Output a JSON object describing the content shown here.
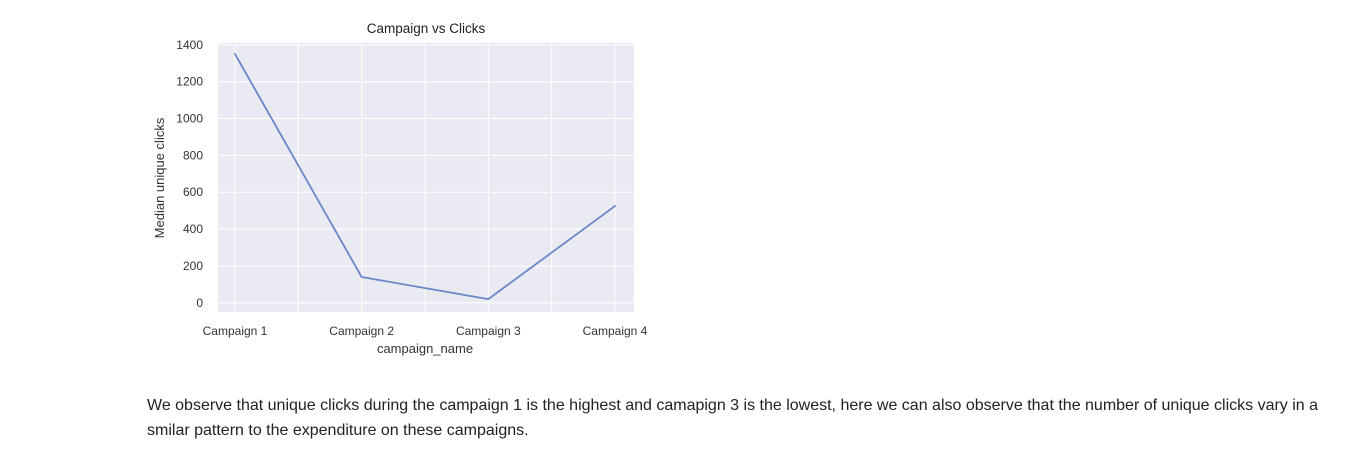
{
  "chart_data": {
    "type": "line",
    "title": "Campaign vs Clicks",
    "xlabel": "campaign_name",
    "ylabel": "Median unique clicks",
    "categories": [
      "Campaign 1",
      "Campaign 2",
      "Campaign 3",
      "Campaign 4"
    ],
    "series": [
      {
        "values": [
          1350,
          140,
          20,
          525
        ],
        "color": "#6a87c8"
      }
    ],
    "ylim": [
      -50,
      1410
    ],
    "yticks": [
      0,
      200,
      400,
      600,
      800,
      1000,
      1200,
      1400
    ],
    "grid": true,
    "background": "#eaeaf2",
    "grid_color": "#ffffff"
  },
  "text": {
    "description": "We observe that unique clicks during the campaign 1 is the highest and camapign 3 is the lowest, here we can also observe that the number of unique clicks vary in a smilar pattern to the expenditure on these campaigns."
  }
}
